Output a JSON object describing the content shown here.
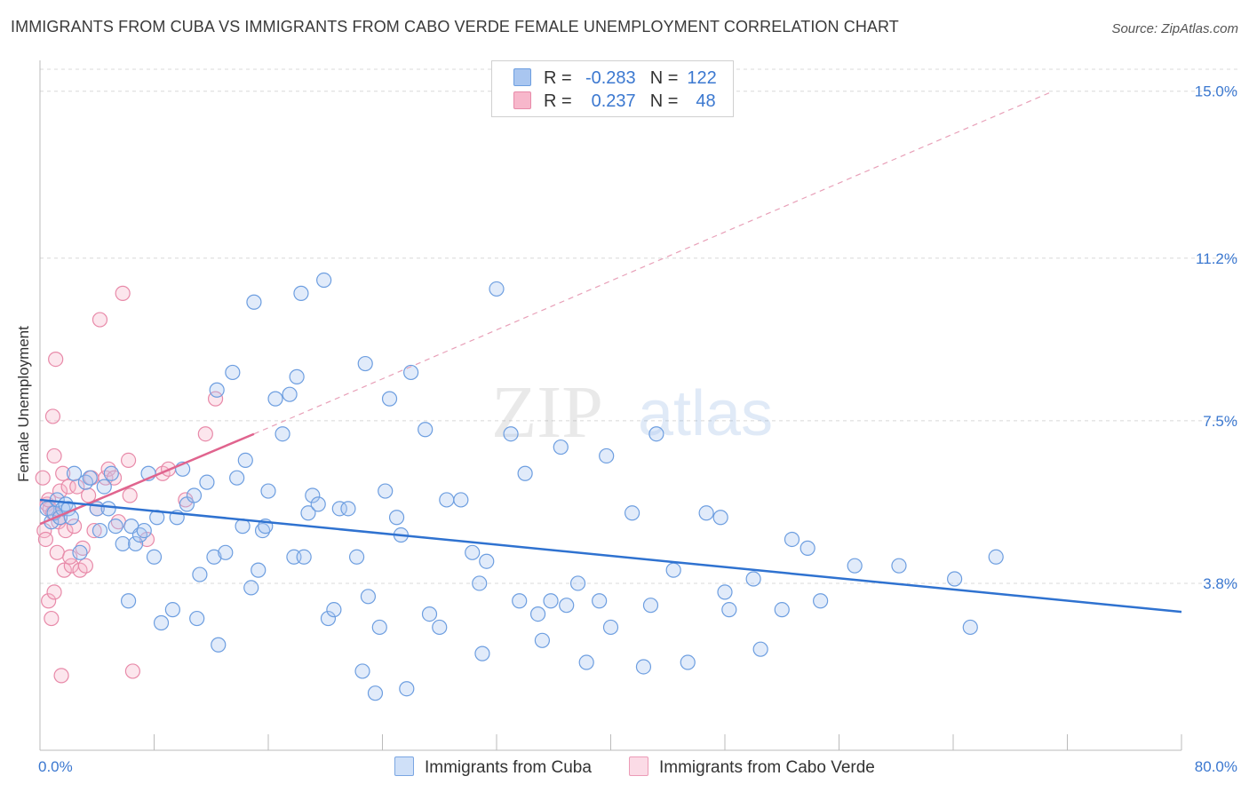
{
  "header": {
    "title": "IMMIGRANTS FROM CUBA VS IMMIGRANTS FROM CABO VERDE FEMALE UNEMPLOYMENT CORRELATION CHART",
    "source": "Source: ZipAtlas.com"
  },
  "watermark": {
    "zip": "ZIP",
    "atlas": "atlas"
  },
  "legend": {
    "rows": [
      {
        "r_label": "R =",
        "r_value": "-0.283",
        "n_label": "N =",
        "n_value": "122",
        "color": "#a9c6f0",
        "border": "#6d9ee0"
      },
      {
        "r_label": "R =",
        "r_value": "0.237",
        "n_label": "N =",
        "n_value": "48",
        "color": "#f7b7cb",
        "border": "#e88aa9"
      }
    ]
  },
  "bottom_legend": {
    "cuba": "Immigrants from Cuba",
    "cabo": "Immigrants from Cabo Verde"
  },
  "chart_data": {
    "type": "scatter",
    "title": "IMMIGRANTS FROM CUBA VS IMMIGRANTS FROM CABO VERDE FEMALE UNEMPLOYMENT CORRELATION CHART",
    "xlabel": "",
    "ylabel": "Female Unemployment",
    "xlim": [
      0,
      80
    ],
    "ylim": [
      0,
      15.5
    ],
    "x_tick_labels": [
      "0.0%",
      "80.0%"
    ],
    "y_ticks": [
      3.8,
      7.5,
      11.2,
      15.0
    ],
    "y_tick_labels": [
      "3.8%",
      "7.5%",
      "11.2%",
      "15.0%"
    ],
    "grid": "horizontal-dashed",
    "series": [
      {
        "name": "Immigrants from Cuba",
        "color": "#6d9ee0",
        "fill": "#a9c6f0",
        "trend": {
          "x": [
            0,
            80
          ],
          "y": [
            5.7,
            3.15
          ],
          "style": "solid",
          "color": "#2f72d0"
        },
        "points": [
          [
            0.5,
            5.5
          ],
          [
            0.8,
            5.2
          ],
          [
            1.0,
            5.4
          ],
          [
            1.2,
            5.7
          ],
          [
            1.4,
            5.3
          ],
          [
            1.6,
            5.5
          ],
          [
            1.8,
            5.6
          ],
          [
            2.0,
            5.5
          ],
          [
            2.2,
            5.3
          ],
          [
            2.4,
            6.3
          ],
          [
            2.8,
            4.5
          ],
          [
            3.2,
            6.1
          ],
          [
            3.5,
            6.2
          ],
          [
            4.0,
            5.5
          ],
          [
            4.2,
            5.0
          ],
          [
            4.5,
            6.0
          ],
          [
            4.8,
            5.5
          ],
          [
            5.0,
            6.3
          ],
          [
            5.3,
            5.1
          ],
          [
            5.8,
            4.7
          ],
          [
            6.2,
            3.4
          ],
          [
            6.4,
            5.1
          ],
          [
            6.7,
            4.7
          ],
          [
            7.0,
            4.9
          ],
          [
            7.3,
            5.0
          ],
          [
            7.6,
            6.3
          ],
          [
            8.0,
            4.4
          ],
          [
            8.2,
            5.3
          ],
          [
            8.5,
            2.9
          ],
          [
            9.3,
            3.2
          ],
          [
            9.6,
            5.3
          ],
          [
            10.0,
            6.4
          ],
          [
            10.3,
            5.6
          ],
          [
            10.8,
            5.8
          ],
          [
            11.0,
            3.0
          ],
          [
            11.2,
            4.0
          ],
          [
            11.7,
            6.1
          ],
          [
            12.2,
            4.4
          ],
          [
            12.4,
            8.2
          ],
          [
            12.5,
            2.4
          ],
          [
            13.0,
            4.5
          ],
          [
            13.5,
            8.6
          ],
          [
            13.8,
            6.2
          ],
          [
            14.2,
            5.1
          ],
          [
            14.4,
            6.6
          ],
          [
            14.8,
            3.7
          ],
          [
            15.0,
            10.2
          ],
          [
            15.3,
            4.1
          ],
          [
            15.6,
            5.0
          ],
          [
            15.8,
            5.1
          ],
          [
            16.0,
            5.9
          ],
          [
            16.5,
            8.0
          ],
          [
            17.0,
            7.2
          ],
          [
            17.5,
            8.1
          ],
          [
            17.8,
            4.4
          ],
          [
            18.0,
            8.5
          ],
          [
            18.3,
            10.4
          ],
          [
            18.5,
            4.4
          ],
          [
            18.8,
            5.4
          ],
          [
            19.1,
            5.8
          ],
          [
            19.5,
            5.6
          ],
          [
            19.9,
            10.7
          ],
          [
            20.2,
            3.0
          ],
          [
            20.6,
            3.2
          ],
          [
            21.0,
            5.5
          ],
          [
            21.6,
            5.5
          ],
          [
            22.2,
            4.4
          ],
          [
            22.6,
            1.8
          ],
          [
            22.8,
            8.8
          ],
          [
            23.0,
            3.5
          ],
          [
            23.5,
            1.3
          ],
          [
            23.8,
            2.8
          ],
          [
            24.2,
            5.9
          ],
          [
            24.5,
            8.0
          ],
          [
            25.0,
            5.3
          ],
          [
            25.3,
            4.9
          ],
          [
            26.0,
            8.6
          ],
          [
            27.0,
            7.3
          ],
          [
            27.3,
            3.1
          ],
          [
            28.0,
            2.8
          ],
          [
            28.5,
            5.7
          ],
          [
            29.5,
            5.7
          ],
          [
            30.3,
            4.5
          ],
          [
            30.8,
            3.8
          ],
          [
            31.0,
            2.2
          ],
          [
            31.3,
            4.3
          ],
          [
            32.0,
            10.5
          ],
          [
            33.0,
            7.2
          ],
          [
            33.6,
            3.4
          ],
          [
            34.0,
            6.3
          ],
          [
            34.9,
            3.1
          ],
          [
            35.2,
            2.5
          ],
          [
            35.8,
            3.4
          ],
          [
            36.5,
            6.9
          ],
          [
            36.9,
            3.3
          ],
          [
            37.7,
            3.8
          ],
          [
            38.3,
            2.0
          ],
          [
            39.2,
            3.4
          ],
          [
            39.7,
            6.7
          ],
          [
            40.0,
            2.8
          ],
          [
            41.5,
            5.4
          ],
          [
            42.3,
            1.9
          ],
          [
            42.8,
            3.3
          ],
          [
            43.2,
            7.2
          ],
          [
            44.4,
            4.1
          ],
          [
            45.4,
            2.0
          ],
          [
            46.7,
            5.4
          ],
          [
            47.7,
            5.3
          ],
          [
            48.0,
            3.6
          ],
          [
            48.3,
            3.2
          ],
          [
            50.0,
            3.9
          ],
          [
            50.5,
            2.3
          ],
          [
            52.0,
            3.2
          ],
          [
            52.7,
            4.8
          ],
          [
            53.8,
            4.6
          ],
          [
            54.7,
            3.4
          ],
          [
            57.1,
            4.2
          ],
          [
            60.2,
            4.2
          ],
          [
            64.1,
            3.9
          ],
          [
            65.2,
            2.8
          ],
          [
            67.0,
            4.4
          ],
          [
            25.7,
            1.4
          ]
        ]
      },
      {
        "name": "Immigrants from Cabo Verde",
        "color": "#e88aa9",
        "fill": "#f7b7cb",
        "trend": {
          "x": [
            0,
            15
          ],
          "y": [
            5.15,
            7.2
          ],
          "style": "solid",
          "color": "#e0648e"
        },
        "trend_extended": {
          "x": [
            15,
            71
          ],
          "y": [
            7.2,
            15.0
          ],
          "style": "dashed",
          "color": "#e8a0b8"
        },
        "points": [
          [
            0.2,
            6.2
          ],
          [
            0.3,
            5.0
          ],
          [
            0.4,
            4.8
          ],
          [
            0.5,
            5.6
          ],
          [
            0.6,
            3.4
          ],
          [
            0.7,
            5.5
          ],
          [
            0.8,
            3.0
          ],
          [
            0.9,
            7.6
          ],
          [
            1.0,
            3.6
          ],
          [
            1.0,
            6.7
          ],
          [
            1.1,
            8.9
          ],
          [
            1.2,
            4.5
          ],
          [
            1.3,
            5.2
          ],
          [
            1.4,
            5.9
          ],
          [
            1.5,
            1.7
          ],
          [
            1.6,
            6.3
          ],
          [
            1.7,
            4.1
          ],
          [
            1.8,
            5.0
          ],
          [
            2.0,
            6.0
          ],
          [
            2.2,
            4.2
          ],
          [
            2.4,
            5.1
          ],
          [
            2.6,
            6.0
          ],
          [
            2.8,
            4.1
          ],
          [
            3.0,
            4.6
          ],
          [
            3.4,
            5.8
          ],
          [
            3.6,
            6.2
          ],
          [
            3.8,
            5.0
          ],
          [
            4.0,
            5.5
          ],
          [
            4.2,
            9.8
          ],
          [
            4.6,
            6.2
          ],
          [
            4.8,
            6.4
          ],
          [
            5.2,
            6.2
          ],
          [
            5.5,
            5.2
          ],
          [
            5.8,
            10.4
          ],
          [
            6.2,
            6.6
          ],
          [
            6.3,
            5.8
          ],
          [
            6.5,
            1.8
          ],
          [
            7.5,
            4.8
          ],
          [
            8.6,
            6.3
          ],
          [
            9.0,
            6.4
          ],
          [
            10.2,
            5.7
          ],
          [
            12.3,
            8.0
          ],
          [
            11.6,
            7.2
          ],
          [
            1.4,
            5.3
          ],
          [
            2.1,
            4.4
          ],
          [
            0.6,
            5.7
          ],
          [
            0.9,
            5.4
          ],
          [
            3.2,
            4.2
          ]
        ]
      }
    ]
  }
}
